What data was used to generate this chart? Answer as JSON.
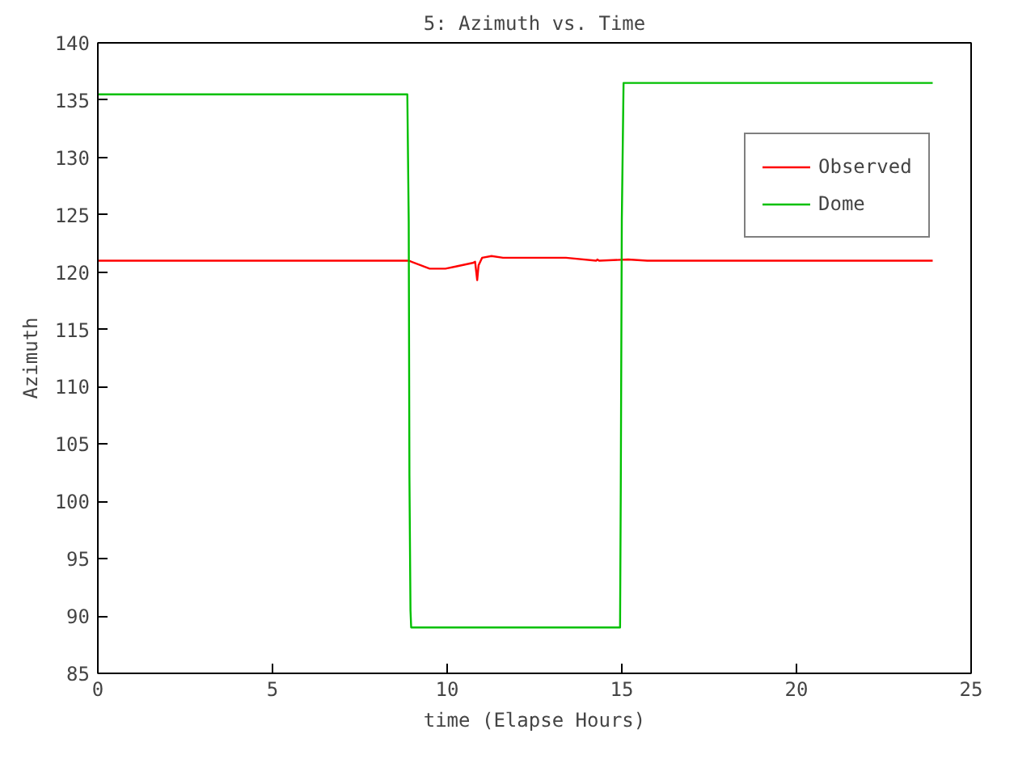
{
  "chart_data": {
    "type": "line",
    "title": "5: Azimuth vs. Time",
    "xlabel": "time (Elapse Hours)",
    "ylabel": "Azimuth",
    "xlim": [
      0,
      25
    ],
    "ylim": [
      85,
      140
    ],
    "xticks": [
      0,
      5,
      10,
      15,
      20,
      25
    ],
    "yticks": [
      85,
      90,
      95,
      100,
      105,
      110,
      115,
      120,
      125,
      130,
      135,
      140
    ],
    "grid": false,
    "legend": "right",
    "marker": "none",
    "line_style": "solid",
    "series": [
      {
        "name": "Observed",
        "color": "#ff0000",
        "x": [
          0,
          8.9,
          9.5,
          9.95,
          10.27,
          10.73,
          10.8,
          10.86,
          10.9,
          11.0,
          11.27,
          11.6,
          13.4,
          14.27,
          14.3,
          14.35,
          15.18,
          15.73,
          23.9
        ],
        "values": [
          121.0,
          121.0,
          120.3,
          120.3,
          120.5,
          120.8,
          120.9,
          119.3,
          120.6,
          121.25,
          121.4,
          121.25,
          121.25,
          121.0,
          121.1,
          121.0,
          121.1,
          121.0,
          121.0
        ]
      },
      {
        "name": "Dome",
        "color": "#00c000",
        "x": [
          0,
          8.86,
          8.9,
          8.92,
          8.95,
          8.97,
          9.05,
          14.95,
          14.97,
          15.0,
          15.05,
          23.9
        ],
        "values": [
          135.5,
          135.5,
          124.4,
          102.2,
          90.5,
          89.0,
          89.0,
          89.0,
          100.8,
          124.5,
          136.5,
          136.5
        ]
      }
    ]
  }
}
